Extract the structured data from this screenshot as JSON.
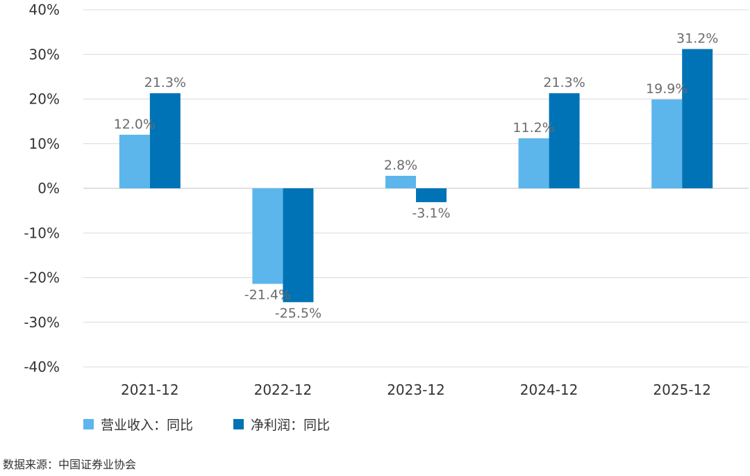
{
  "chart_data": {
    "type": "bar",
    "categories": [
      "2021-12",
      "2022-12",
      "2023-12",
      "2024-12",
      "2025-12"
    ],
    "series": [
      {
        "name": "营业收入：同比",
        "values": [
          12.0,
          -21.4,
          2.8,
          11.2,
          19.9
        ],
        "labels": [
          "12.0%",
          "-21.4%",
          "2.8%",
          "11.2%",
          "19.9%"
        ],
        "color": "#5cb6ec"
      },
      {
        "name": "净利润：同比",
        "values": [
          21.3,
          -25.5,
          -3.1,
          21.3,
          31.2
        ],
        "labels": [
          "21.3%",
          "-25.5%",
          "-3.1%",
          "21.3%",
          "31.2%"
        ],
        "color": "#0073b6"
      }
    ],
    "ylim": [
      -40,
      40
    ],
    "yticks": [
      40,
      30,
      20,
      10,
      0,
      -10,
      -20,
      -30,
      -40
    ],
    "ytick_labels": [
      "40%",
      "30%",
      "20%",
      "10%",
      "0%",
      "-10%",
      "-20%",
      "-30%",
      "-40%"
    ],
    "grid": true,
    "legend_position": "bottom-left"
  },
  "source_text": "数据来源：中国证券业协会"
}
